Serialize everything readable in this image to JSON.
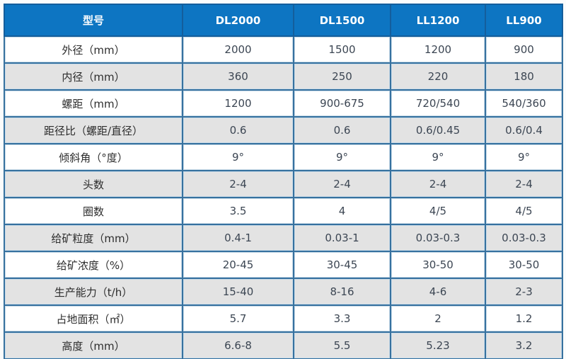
{
  "table": {
    "header": [
      "型号",
      "DL2000",
      "DL1500",
      "LL1200",
      "LL900"
    ],
    "rows": [
      {
        "label": "外径（mm）",
        "values": [
          "2000",
          "1500",
          "1200",
          "900"
        ]
      },
      {
        "label": "内径（mm）",
        "values": [
          "360",
          "250",
          "220",
          "180"
        ]
      },
      {
        "label": "螺距（mm）",
        "values": [
          "1200",
          "900-675",
          "720/540",
          "540/360"
        ]
      },
      {
        "label": "距径比（螺距/直径）",
        "values": [
          "0.6",
          "0.6",
          "0.6/0.45",
          "0.6/0.4"
        ]
      },
      {
        "label": "倾斜角（°度）",
        "values": [
          "9°",
          "9°",
          "9°",
          "9°"
        ]
      },
      {
        "label": "头数",
        "values": [
          "2-4",
          "2-4",
          "2-4",
          "2-4"
        ]
      },
      {
        "label": "圈数",
        "values": [
          "3.5",
          "4",
          "4/5",
          "4/5"
        ]
      },
      {
        "label": "给矿粒度（mm）",
        "values": [
          "0.4-1",
          "0.03-1",
          "0.03-0.3",
          "0.03-0.3"
        ]
      },
      {
        "label": "给矿浓度（%）",
        "values": [
          "20-45",
          "30-45",
          "30-50",
          "30-50"
        ]
      },
      {
        "label": "生产能力（t/h）",
        "values": [
          "15-40",
          "8-16",
          "4-6",
          "2-3"
        ]
      },
      {
        "label": "占地面积（㎡）",
        "values": [
          "5.7",
          "3.3",
          "2",
          "1.2"
        ]
      },
      {
        "label": "高度（mm）",
        "values": [
          "6.6-8",
          "5.5",
          "5.23",
          "3.2"
        ]
      }
    ]
  },
  "colors": {
    "header_bg": "#0d75c2",
    "header_text": "#ffffff",
    "header_border": "#145e9c",
    "border": "#36719f",
    "border_highlight": "#c9dbe8",
    "row_bg": "#ffffff",
    "row_alt_bg": "#e3e3e3",
    "value_text": "#3c4653",
    "label_text": "#2d2d2d"
  }
}
